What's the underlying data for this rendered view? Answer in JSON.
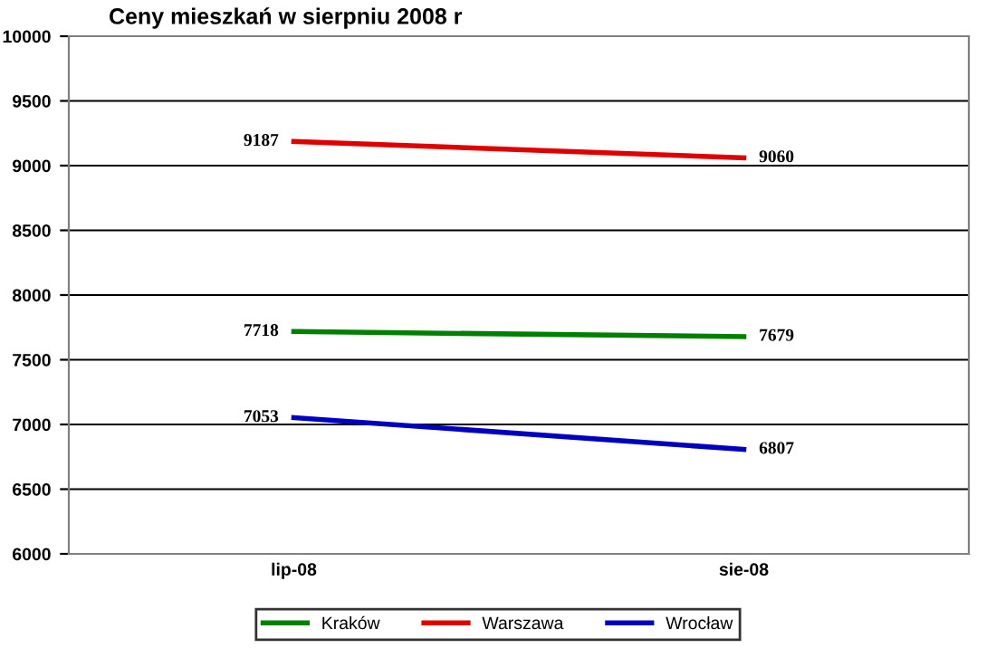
{
  "chart_data": {
    "type": "line",
    "title": "Ceny mieszkań w sierpniu 2008 r",
    "categories": [
      "lip-08",
      "sie-08"
    ],
    "series": [
      {
        "name": "Kraków",
        "color": "#008000",
        "values": [
          7718,
          7679
        ]
      },
      {
        "name": "Warszawa",
        "color": "#e00000",
        "values": [
          9187,
          9060
        ]
      },
      {
        "name": "Wrocław",
        "color": "#0000c0",
        "values": [
          7053,
          6807
        ]
      }
    ],
    "ylim": [
      6000,
      10000
    ],
    "yticks": [
      6000,
      6500,
      7000,
      7500,
      8000,
      8500,
      9000,
      9500,
      10000
    ],
    "grid": "y",
    "legend": "bottom",
    "data_labels": true,
    "marker": "none",
    "line_style": "solid"
  }
}
